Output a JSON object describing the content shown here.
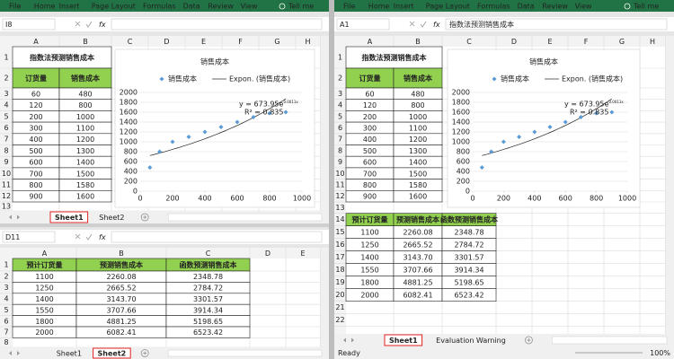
{
  "ribbon": {
    "tabs": [
      "File",
      "Home",
      "Insert",
      "Page Layout",
      "Formulas",
      "Data",
      "Review",
      "View"
    ],
    "tell_me": "Tell me"
  },
  "left_top": {
    "name_box": "I8",
    "fx": "fx",
    "columns": [
      "A",
      "B",
      "C",
      "D",
      "E",
      "F",
      "G",
      "H"
    ],
    "rows": [
      1,
      2,
      3,
      4,
      5,
      6,
      7,
      8,
      9,
      10,
      11,
      12,
      13
    ],
    "table": {
      "title": "指数法预测销售成本",
      "headers": [
        "订货量",
        "销售成本"
      ],
      "rows": [
        [
          60,
          480
        ],
        [
          120,
          800
        ],
        [
          200,
          1000
        ],
        [
          300,
          1100
        ],
        [
          400,
          1200
        ],
        [
          500,
          1300
        ],
        [
          600,
          1400
        ],
        [
          700,
          1500
        ],
        [
          800,
          1580
        ],
        [
          900,
          1600
        ]
      ]
    },
    "chart": {
      "type": "scatter",
      "title": "销售成本",
      "legend": [
        "销售成本",
        "Expon. (销售成本)"
      ],
      "equation": "y = 673.95e",
      "exponent": "0.0011x",
      "r_squared": "R² = 0.835",
      "xlim": [
        0,
        1000
      ],
      "ylim": [
        0,
        2000
      ],
      "xticks": [
        0,
        200,
        400,
        600,
        800,
        1000
      ],
      "yticks": [
        0,
        200,
        400,
        600,
        800,
        1000,
        1200,
        1400,
        1600,
        1800,
        2000
      ],
      "grid": true,
      "color": "#5b9bd5"
    },
    "sheet_tabs": [
      "Sheet1",
      "Sheet2"
    ],
    "active": 0
  },
  "left_bottom": {
    "name_box": "D11",
    "fx": "fx",
    "columns": [
      "A",
      "B",
      "C",
      "D",
      "E"
    ],
    "rows": [
      1,
      2,
      3,
      4,
      5,
      6,
      7,
      8
    ],
    "table": {
      "headers": [
        "预计订货量",
        "预测销售成本",
        "函数预测销售成本"
      ],
      "rows": [
        [
          "1100",
          "2260.08",
          "2348.78"
        ],
        [
          "1250",
          "2665.52",
          "2784.72"
        ],
        [
          "1400",
          "3143.70",
          "3301.57"
        ],
        [
          "1550",
          "3707.66",
          "3914.34"
        ],
        [
          "1800",
          "4881.25",
          "5198.65"
        ],
        [
          "2000",
          "6082.41",
          "6523.42"
        ]
      ]
    },
    "sheet_tabs": [
      "Sheet1",
      "Sheet2"
    ],
    "active": 1
  },
  "right": {
    "name_box": "A1",
    "fx": "fx",
    "formula": "指数法预测销售成本",
    "columns": [
      "A",
      "B",
      "C",
      "D",
      "E",
      "F",
      "G",
      "H"
    ],
    "rows": [
      1,
      2,
      3,
      4,
      5,
      6,
      7,
      8,
      9,
      10,
      11,
      12,
      13,
      14,
      15,
      16,
      17,
      18,
      19,
      20,
      21,
      22
    ],
    "table": {
      "title": "指数法预测销售成本",
      "headers": [
        "订货量",
        "销售成本"
      ],
      "rows": [
        [
          60,
          480
        ],
        [
          120,
          800
        ],
        [
          200,
          1000
        ],
        [
          300,
          1100
        ],
        [
          400,
          1200
        ],
        [
          500,
          1300
        ],
        [
          600,
          1400
        ],
        [
          700,
          1500
        ],
        [
          800,
          1580
        ],
        [
          900,
          1600
        ]
      ]
    },
    "prediction": {
      "headers": [
        "预计订货量",
        "预测销售成本",
        "函数预测销售成本"
      ],
      "rows": [
        [
          "1100",
          "2260.08",
          "2348.78"
        ],
        [
          "1250",
          "2665.52",
          "2784.72"
        ],
        [
          "1400",
          "3143.70",
          "3301.57"
        ],
        [
          "1550",
          "3707.66",
          "3914.34"
        ],
        [
          "1800",
          "4881.25",
          "5198.65"
        ],
        [
          "2000",
          "6082.41",
          "6523.42"
        ]
      ]
    },
    "chart": {
      "type": "scatter",
      "title": "销售成本",
      "legend": [
        "销售成本",
        "Expon. (销售成本)"
      ],
      "equation": "y = 673.95e",
      "exponent": "0.0011x",
      "r_squared": "R² = 0.835",
      "xlim": [
        0,
        1000
      ],
      "ylim": [
        0,
        2000
      ],
      "xticks": [
        0,
        200,
        400,
        600,
        800,
        1000
      ],
      "yticks": [
        0,
        200,
        400,
        600,
        800,
        1000,
        1200,
        1400,
        1600,
        1800,
        2000
      ],
      "grid": true,
      "color": "#5b9bd5"
    },
    "sheet_tabs": [
      "Sheet1",
      "Evaluation Warning"
    ],
    "active": 0,
    "status": "Ready",
    "zoom": "100%"
  }
}
